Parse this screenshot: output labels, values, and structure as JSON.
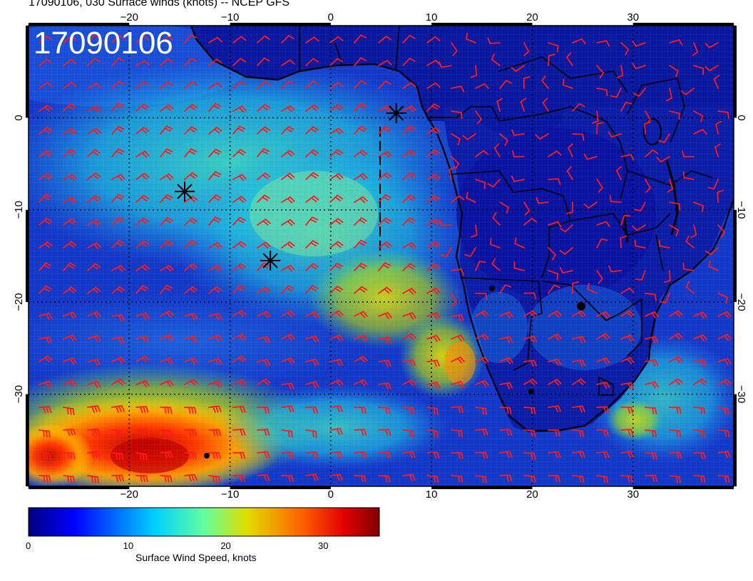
{
  "title": "17090106, 030 Surface winds (knots) -- NCEP GFS",
  "date_stamp": "17090106",
  "colorbar": {
    "label": "Surface Wind Speed, knots",
    "ticks": [
      "0",
      "10",
      "20",
      "30"
    ],
    "tick_values": [
      0,
      10,
      20,
      30
    ],
    "range": [
      0,
      36
    ]
  },
  "axes": {
    "lon_range": [
      -30,
      40
    ],
    "lat_range": [
      -40,
      10
    ],
    "lon_ticks": [
      -20,
      -10,
      0,
      10,
      20,
      30
    ],
    "lon_labels": [
      "−20",
      "−10",
      "0",
      "10",
      "20",
      "30"
    ],
    "lat_ticks": [
      0,
      -10,
      -20,
      -30
    ],
    "lat_labels": [
      "0",
      "−10",
      "−20",
      "−30"
    ]
  },
  "markers": [
    {
      "name": "star-1",
      "lon": -14.5,
      "lat": -8.0
    },
    {
      "name": "star-2",
      "lon": -6.0,
      "lat": -15.5
    },
    {
      "name": "star-3",
      "lon": 6.5,
      "lat": 0.5
    }
  ],
  "colors": {
    "barb": "#ff1a1a",
    "ocean_low": "#0a1aa8",
    "land": "#0b1aa0",
    "coast": "#000000"
  }
}
